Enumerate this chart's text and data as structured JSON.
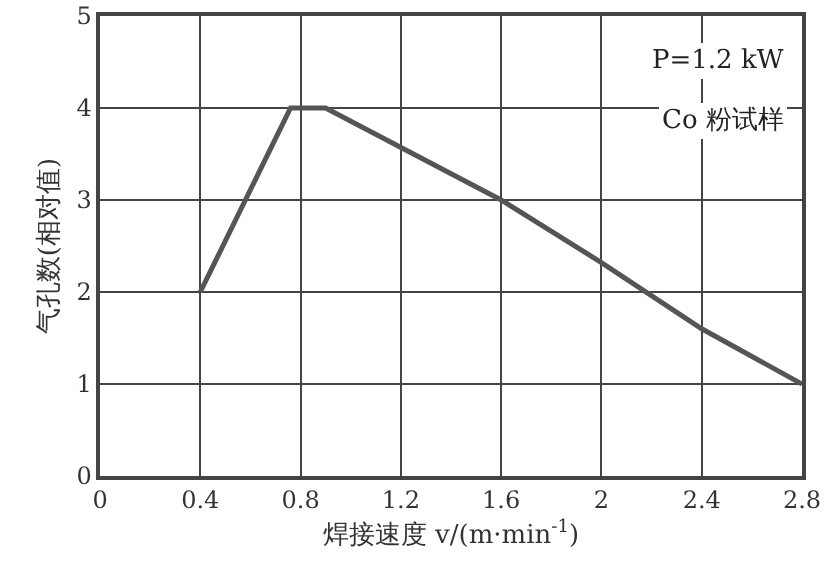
{
  "chart_data": {
    "type": "line",
    "xlabel": "焊接速度 v/(m·min$^{-1}$)",
    "ylabel": "气孔数(相对值)",
    "annotations": [
      "P=1.2 kW",
      "Co 粉试样"
    ],
    "x": [
      0.4,
      0.76,
      0.9,
      1.6,
      2.0,
      2.4,
      2.8
    ],
    "series": [
      {
        "color": "#555555",
        "values": [
          2,
          4,
          4,
          3,
          2.32,
          1.6,
          1
        ]
      }
    ],
    "xlim": [
      0,
      2.8
    ],
    "xticks": [
      0,
      0.4,
      0.8,
      1.2,
      1.6,
      2,
      2.4,
      2.8
    ],
    "ylim": [
      0,
      5
    ],
    "yticks": [
      0,
      1,
      2,
      3,
      4,
      5
    ],
    "grid": true,
    "marker": "none",
    "line_style": "solid"
  }
}
